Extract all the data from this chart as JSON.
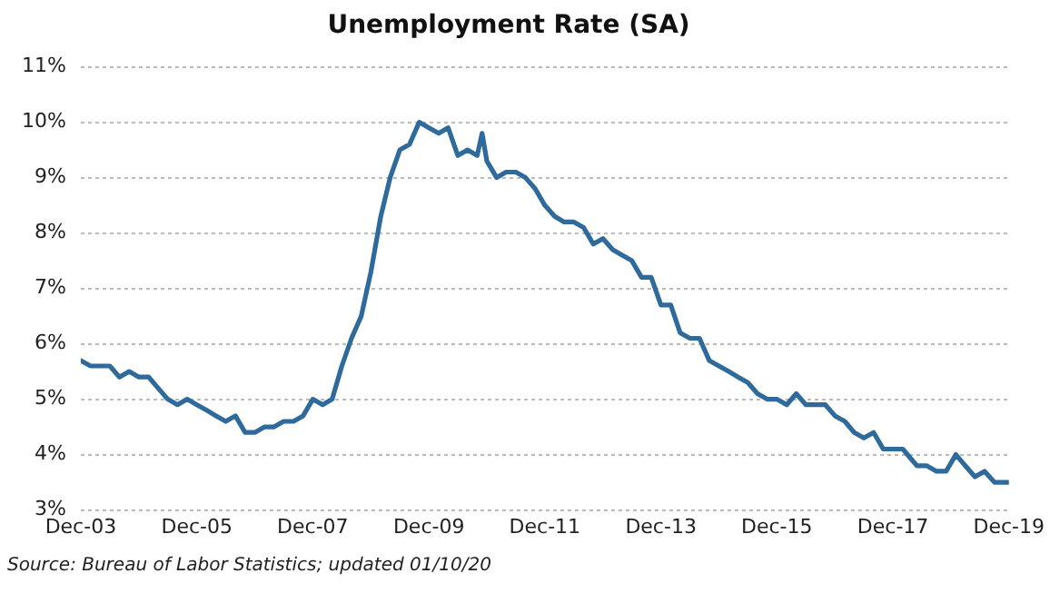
{
  "chart_data": {
    "type": "line",
    "title": "Unemployment Rate (SA)",
    "x": [
      "2003-12",
      "2004-02",
      "2004-04",
      "2004-06",
      "2004-08",
      "2004-10",
      "2004-12",
      "2005-02",
      "2005-04",
      "2005-06",
      "2005-08",
      "2005-10",
      "2005-12",
      "2006-02",
      "2006-04",
      "2006-06",
      "2006-08",
      "2006-10",
      "2006-12",
      "2007-02",
      "2007-04",
      "2007-06",
      "2007-08",
      "2007-10",
      "2007-12",
      "2008-02",
      "2008-04",
      "2008-06",
      "2008-08",
      "2008-10",
      "2008-12",
      "2009-02",
      "2009-04",
      "2009-06",
      "2009-08",
      "2009-10",
      "2009-12",
      "2010-02",
      "2010-04",
      "2010-06",
      "2010-08",
      "2010-10",
      "2010-11",
      "2010-12",
      "2011-02",
      "2011-04",
      "2011-06",
      "2011-08",
      "2011-10",
      "2011-12",
      "2012-02",
      "2012-04",
      "2012-06",
      "2012-08",
      "2012-10",
      "2012-12",
      "2013-02",
      "2013-04",
      "2013-06",
      "2013-08",
      "2013-10",
      "2013-12",
      "2014-02",
      "2014-04",
      "2014-06",
      "2014-08",
      "2014-10",
      "2014-12",
      "2015-02",
      "2015-04",
      "2015-06",
      "2015-08",
      "2015-10",
      "2015-12",
      "2016-02",
      "2016-04",
      "2016-06",
      "2016-08",
      "2016-10",
      "2016-12",
      "2017-02",
      "2017-04",
      "2017-06",
      "2017-08",
      "2017-10",
      "2017-12",
      "2018-02",
      "2018-04",
      "2018-05",
      "2018-07",
      "2018-09",
      "2018-11",
      "2019-01",
      "2019-03",
      "2019-05",
      "2019-07",
      "2019-09",
      "2019-11",
      "2019-12"
    ],
    "series": [
      {
        "color": "#2f6a9c",
        "values": [
          5.7,
          5.6,
          5.6,
          5.6,
          5.4,
          5.5,
          5.4,
          5.4,
          5.2,
          5.0,
          4.9,
          5.0,
          4.9,
          4.8,
          4.7,
          4.6,
          4.7,
          4.4,
          4.4,
          4.5,
          4.5,
          4.6,
          4.6,
          4.7,
          5.0,
          4.9,
          5.0,
          5.6,
          6.1,
          6.5,
          7.3,
          8.3,
          9.0,
          9.5,
          9.6,
          10.0,
          9.9,
          9.8,
          9.9,
          9.4,
          9.5,
          9.4,
          9.8,
          9.3,
          9.0,
          9.1,
          9.1,
          9.0,
          8.8,
          8.5,
          8.3,
          8.2,
          8.2,
          8.1,
          7.8,
          7.9,
          7.7,
          7.6,
          7.5,
          7.2,
          7.2,
          6.7,
          6.7,
          6.2,
          6.1,
          6.1,
          5.7,
          5.6,
          5.5,
          5.4,
          5.3,
          5.1,
          5.0,
          5.0,
          4.9,
          5.1,
          4.9,
          4.9,
          4.9,
          4.7,
          4.6,
          4.4,
          4.3,
          4.4,
          4.1,
          4.1,
          4.1,
          3.9,
          3.8,
          3.8,
          3.7,
          3.7,
          4.0,
          3.8,
          3.6,
          3.7,
          3.5,
          3.5,
          3.5
        ]
      }
    ],
    "xlim": [
      "2003-12",
      "2019-12"
    ],
    "xticks": [
      {
        "value": "2003-12",
        "label": "Dec-03"
      },
      {
        "value": "2005-12",
        "label": "Dec-05"
      },
      {
        "value": "2007-12",
        "label": "Dec-07"
      },
      {
        "value": "2009-12",
        "label": "Dec-09"
      },
      {
        "value": "2011-12",
        "label": "Dec-11"
      },
      {
        "value": "2013-12",
        "label": "Dec-13"
      },
      {
        "value": "2015-12",
        "label": "Dec-15"
      },
      {
        "value": "2017-12",
        "label": "Dec-17"
      },
      {
        "value": "2019-12",
        "label": "Dec-19"
      }
    ],
    "ylim": [
      3,
      11
    ],
    "yticks": [
      {
        "value": 3,
        "label": "3%"
      },
      {
        "value": 4,
        "label": "4%"
      },
      {
        "value": 5,
        "label": "5%"
      },
      {
        "value": 6,
        "label": "6%"
      },
      {
        "value": 7,
        "label": "7%"
      },
      {
        "value": 8,
        "label": "8%"
      },
      {
        "value": 9,
        "label": "9%"
      },
      {
        "value": 10,
        "label": "10%"
      },
      {
        "value": 11,
        "label": "11%"
      }
    ],
    "grid": "y",
    "legend": false,
    "marker": "none",
    "line_style": "solid",
    "annotations": [
      "Source: Bureau of Labor Statistics; updated 01/10/20"
    ]
  }
}
